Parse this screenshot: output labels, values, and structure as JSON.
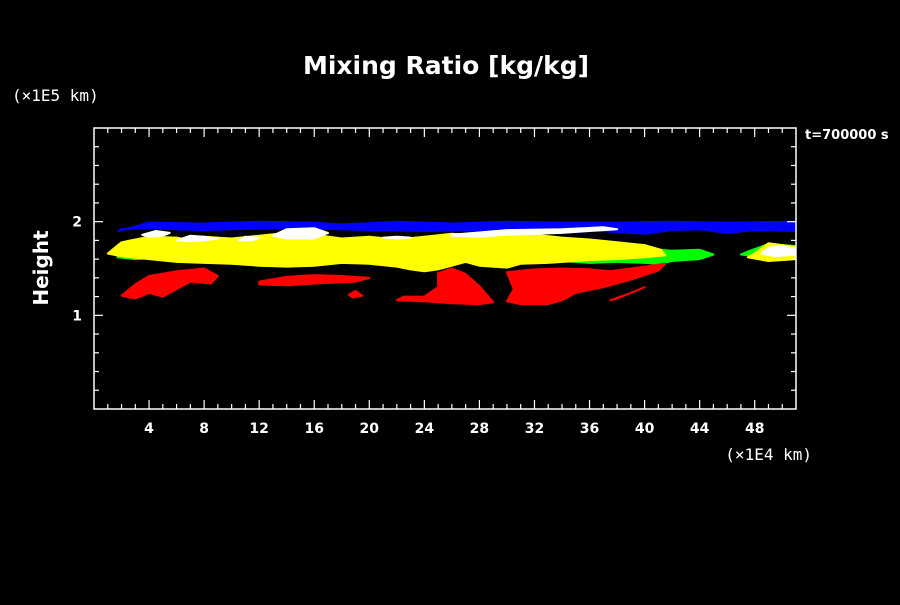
{
  "chart_data": {
    "type": "heatmap",
    "title": "Mixing Ratio [kg/kg]",
    "ylabel": "Height",
    "xlabel": "",
    "x_unit_label": "(×1E4 km)",
    "y_unit_label": "(×1E5 km)",
    "time_label": "t=700000 s",
    "xlim": [
      0,
      51
    ],
    "ylim": [
      0,
      3
    ],
    "x_ticks": [
      4,
      8,
      12,
      16,
      20,
      24,
      28,
      32,
      36,
      40,
      44,
      48
    ],
    "y_ticks": [
      1,
      2
    ],
    "background_color": "#000000",
    "axis_color": "#ffffff",
    "levels": [
      {
        "color": "#0000ff",
        "regions": [
          [
            [
              1.8,
              1.9
            ],
            [
              4,
              1.99
            ],
            [
              8,
              1.98
            ],
            [
              12,
              2.0
            ],
            [
              16,
              1.99
            ],
            [
              18,
              1.97
            ],
            [
              22,
              2.0
            ],
            [
              26,
              1.98
            ],
            [
              30,
              2.0
            ],
            [
              34,
              1.99
            ],
            [
              38,
              1.99
            ],
            [
              42,
              2.0
            ],
            [
              46,
              1.99
            ],
            [
              51,
              2.0
            ],
            [
              51,
              1.9
            ],
            [
              48,
              1.91
            ],
            [
              46,
              1.88
            ],
            [
              44,
              1.92
            ],
            [
              42,
              1.91
            ],
            [
              40,
              1.87
            ],
            [
              38,
              1.89
            ],
            [
              36,
              1.91
            ],
            [
              32,
              1.92
            ],
            [
              28,
              1.91
            ],
            [
              24,
              1.9
            ],
            [
              20,
              1.91
            ],
            [
              18,
              1.92
            ],
            [
              14,
              1.93
            ],
            [
              10,
              1.92
            ],
            [
              8,
              1.91
            ],
            [
              6,
              1.92
            ],
            [
              4,
              1.93
            ],
            [
              2,
              1.92
            ]
          ]
        ]
      },
      {
        "color": "#00ff00",
        "regions": [
          [
            [
              1.7,
              1.62
            ],
            [
              3,
              1.6
            ],
            [
              6,
              1.63
            ],
            [
              10,
              1.6
            ],
            [
              14,
              1.63
            ],
            [
              16,
              1.61
            ],
            [
              18,
              1.58
            ],
            [
              20,
              1.59
            ],
            [
              22,
              1.57
            ],
            [
              24,
              1.58
            ],
            [
              26,
              1.6
            ],
            [
              28,
              1.59
            ],
            [
              30,
              1.58
            ],
            [
              34,
              1.58
            ],
            [
              36,
              1.56
            ],
            [
              38,
              1.57
            ],
            [
              40,
              1.56
            ],
            [
              41,
              1.55
            ],
            [
              42,
              1.58
            ],
            [
              44,
              1.6
            ],
            [
              45,
              1.65
            ],
            [
              44,
              1.7
            ],
            [
              42,
              1.69
            ],
            [
              40,
              1.71
            ],
            [
              36,
              1.73
            ],
            [
              32,
              1.75
            ],
            [
              28,
              1.74
            ],
            [
              24,
              1.76
            ],
            [
              20,
              1.78
            ],
            [
              16,
              1.76
            ],
            [
              12,
              1.77
            ],
            [
              8,
              1.76
            ],
            [
              4,
              1.77
            ],
            [
              2,
              1.72
            ]
          ],
          [
            [
              47.5,
              1.68
            ],
            [
              49,
              1.76
            ],
            [
              51,
              1.74
            ],
            [
              51,
              1.66
            ],
            [
              49,
              1.62
            ],
            [
              47,
              1.65
            ]
          ]
        ]
      },
      {
        "color": "#ffff00",
        "regions": [
          [
            [
              1,
              1.66
            ],
            [
              2,
              1.78
            ],
            [
              4,
              1.84
            ],
            [
              6,
              1.83
            ],
            [
              7,
              1.8
            ],
            [
              8,
              1.84
            ],
            [
              10,
              1.82
            ],
            [
              12,
              1.85
            ],
            [
              14,
              1.88
            ],
            [
              16,
              1.86
            ],
            [
              18,
              1.82
            ],
            [
              20,
              1.84
            ],
            [
              22,
              1.81
            ],
            [
              24,
              1.84
            ],
            [
              26,
              1.87
            ],
            [
              28,
              1.85
            ],
            [
              30,
              1.88
            ],
            [
              32,
              1.86
            ],
            [
              34,
              1.83
            ],
            [
              36,
              1.81
            ],
            [
              38,
              1.78
            ],
            [
              40,
              1.75
            ],
            [
              41.2,
              1.7
            ],
            [
              41.5,
              1.64
            ],
            [
              40,
              1.62
            ],
            [
              38,
              1.6
            ],
            [
              36,
              1.59
            ],
            [
              33,
              1.56
            ],
            [
              31,
              1.55
            ],
            [
              30,
              1.51
            ],
            [
              28,
              1.53
            ],
            [
              27,
              1.57
            ],
            [
              26,
              1.53
            ],
            [
              25,
              1.49
            ],
            [
              24,
              1.47
            ],
            [
              23,
              1.49
            ],
            [
              22,
              1.52
            ],
            [
              20,
              1.55
            ],
            [
              18,
              1.56
            ],
            [
              16,
              1.53
            ],
            [
              14,
              1.52
            ],
            [
              12,
              1.53
            ],
            [
              10,
              1.55
            ],
            [
              8,
              1.56
            ],
            [
              6,
              1.57
            ],
            [
              4,
              1.6
            ],
            [
              2,
              1.63
            ]
          ],
          [
            [
              48,
              1.66
            ],
            [
              49,
              1.77
            ],
            [
              51,
              1.73
            ],
            [
              51,
              1.6
            ],
            [
              49,
              1.58
            ],
            [
              47.5,
              1.62
            ]
          ]
        ]
      },
      {
        "color": "#ff0000",
        "regions": [
          [
            [
              2,
              1.21
            ],
            [
              3,
              1.33
            ],
            [
              4,
              1.42
            ],
            [
              6,
              1.47
            ],
            [
              8,
              1.5
            ],
            [
              9,
              1.42
            ],
            [
              8.5,
              1.34
            ],
            [
              7,
              1.36
            ],
            [
              6,
              1.28
            ],
            [
              5,
              1.2
            ],
            [
              4,
              1.24
            ],
            [
              3,
              1.18
            ]
          ],
          [
            [
              12,
              1.36
            ],
            [
              14,
              1.41
            ],
            [
              16,
              1.43
            ],
            [
              18,
              1.42
            ],
            [
              20,
              1.4
            ],
            [
              19,
              1.36
            ],
            [
              16,
              1.34
            ],
            [
              14,
              1.32
            ],
            [
              12,
              1.33
            ]
          ],
          [
            [
              25,
              1.45
            ],
            [
              26,
              1.5
            ],
            [
              27,
              1.44
            ],
            [
              28,
              1.31
            ],
            [
              29,
              1.14
            ],
            [
              28,
              1.12
            ],
            [
              26,
              1.13
            ],
            [
              24,
              1.15
            ],
            [
              22,
              1.16
            ],
            [
              22.5,
              1.2
            ],
            [
              24,
              1.2
            ],
            [
              25,
              1.3
            ]
          ],
          [
            [
              30,
              1.46
            ],
            [
              32,
              1.49
            ],
            [
              34,
              1.5
            ],
            [
              36,
              1.49
            ],
            [
              37.5,
              1.47
            ],
            [
              40,
              1.52
            ],
            [
              41.5,
              1.55
            ],
            [
              41,
              1.48
            ],
            [
              39,
              1.38
            ],
            [
              37,
              1.3
            ],
            [
              35,
              1.24
            ],
            [
              34,
              1.16
            ],
            [
              33,
              1.12
            ],
            [
              31,
              1.12
            ],
            [
              30,
              1.15
            ],
            [
              30.5,
              1.28
            ]
          ],
          [
            [
              37.5,
              1.16
            ],
            [
              39,
              1.24
            ],
            [
              40,
              1.3
            ],
            [
              39,
              1.24
            ],
            [
              38,
              1.18
            ]
          ],
          [
            [
              18.5,
              1.22
            ],
            [
              19,
              1.26
            ],
            [
              19.5,
              1.21
            ],
            [
              18.8,
              1.19
            ]
          ]
        ]
      },
      {
        "color": "#ffffff",
        "regions": [
          [
            [
              3.5,
              1.86
            ],
            [
              4.5,
              1.9
            ],
            [
              5.5,
              1.88
            ],
            [
              5,
              1.85
            ],
            [
              4,
              1.84
            ]
          ],
          [
            [
              6,
              1.8
            ],
            [
              7,
              1.85
            ],
            [
              8,
              1.84
            ],
            [
              9,
              1.82
            ],
            [
              8,
              1.8
            ],
            [
              7,
              1.79
            ]
          ],
          [
            [
              10.5,
              1.8
            ],
            [
              11,
              1.84
            ],
            [
              12,
              1.83
            ],
            [
              11.5,
              1.8
            ]
          ],
          [
            [
              13,
              1.85
            ],
            [
              14,
              1.92
            ],
            [
              16,
              1.93
            ],
            [
              17,
              1.88
            ],
            [
              16,
              1.82
            ],
            [
              14,
              1.82
            ]
          ],
          [
            [
              21,
              1.83
            ],
            [
              22,
              1.84
            ],
            [
              23,
              1.83
            ],
            [
              22,
              1.82
            ]
          ],
          [
            [
              26,
              1.86
            ],
            [
              30,
              1.91
            ],
            [
              34,
              1.92
            ],
            [
              37,
              1.94
            ],
            [
              38,
              1.92
            ],
            [
              36,
              1.9
            ],
            [
              34,
              1.88
            ],
            [
              30,
              1.86
            ],
            [
              28,
              1.84
            ],
            [
              26,
              1.85
            ]
          ],
          [
            [
              48.5,
              1.66
            ],
            [
              49,
              1.72
            ],
            [
              50,
              1.74
            ],
            [
              51,
              1.71
            ],
            [
              51,
              1.65
            ],
            [
              49.5,
              1.63
            ]
          ]
        ]
      }
    ]
  }
}
